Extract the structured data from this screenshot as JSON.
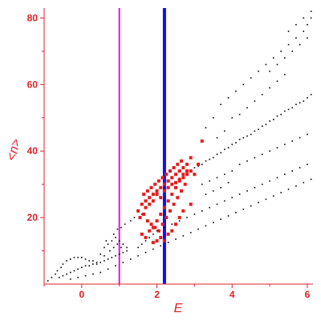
{
  "chart_data": {
    "type": "scatter",
    "xlabel": "E",
    "ylabel": "<n>",
    "xlim": [
      -1.0,
      6.15
    ],
    "ylim": [
      0,
      83
    ],
    "x_ticks": [
      "0",
      "2",
      "4",
      "6"
    ],
    "y_ticks": [
      "20",
      "40",
      "60",
      "80"
    ],
    "grid": false,
    "vertical_lines": [
      {
        "x": 1.0,
        "color": "#d21ad2"
      },
      {
        "x": 2.2,
        "color": "#0a14f0"
      }
    ],
    "series": [
      {
        "color": "#000000",
        "marker": "small-dot",
        "points": [
          [
            -0.9,
            1
          ],
          [
            -0.8,
            2
          ],
          [
            -0.7,
            3
          ],
          [
            -0.65,
            4
          ],
          [
            -0.55,
            5
          ],
          [
            -0.5,
            6
          ],
          [
            -0.4,
            7
          ],
          [
            -0.3,
            7.5
          ],
          [
            -0.2,
            8
          ],
          [
            -0.1,
            8
          ],
          [
            0,
            8
          ],
          [
            0.1,
            7.5
          ],
          [
            0.2,
            7
          ],
          [
            0.3,
            7
          ],
          [
            0.4,
            6.5
          ],
          [
            -0.6,
            2
          ],
          [
            -0.5,
            2.5
          ],
          [
            -0.4,
            3
          ],
          [
            -0.3,
            3.5
          ],
          [
            -0.2,
            4
          ],
          [
            -0.1,
            4.5
          ],
          [
            0,
            5
          ],
          [
            0.1,
            5.5
          ],
          [
            0.2,
            5.5
          ],
          [
            0.3,
            6
          ],
          [
            0.4,
            6
          ],
          [
            0.5,
            6.5
          ],
          [
            0.6,
            7
          ],
          [
            0.7,
            7.5
          ],
          [
            0.8,
            8
          ],
          [
            0.9,
            8.5
          ],
          [
            1.0,
            9
          ],
          [
            1.1,
            9.5
          ],
          [
            1.2,
            10
          ],
          [
            -0.3,
            1.5
          ],
          [
            -0.1,
            2
          ],
          [
            0.1,
            2.5
          ],
          [
            0.3,
            3
          ],
          [
            0.5,
            3.5
          ],
          [
            0.7,
            4.5
          ],
          [
            0.9,
            5.5
          ],
          [
            1.1,
            6.5
          ],
          [
            1.3,
            7.5
          ],
          [
            1.5,
            8.5
          ],
          [
            1.7,
            9.5
          ],
          [
            1.9,
            10.5
          ],
          [
            2.1,
            11.5
          ],
          [
            2.3,
            12.5
          ],
          [
            2.5,
            13.5
          ],
          [
            2.7,
            14.5
          ],
          [
            2.9,
            15.5
          ],
          [
            3.1,
            16.5
          ],
          [
            3.3,
            17.5
          ],
          [
            3.5,
            18.5
          ],
          [
            3.7,
            19.5
          ],
          [
            3.9,
            20.5
          ],
          [
            4.1,
            21.5
          ],
          [
            4.3,
            22.5
          ],
          [
            4.5,
            23.5
          ],
          [
            4.7,
            24.5
          ],
          [
            4.9,
            25.5
          ],
          [
            5.1,
            26.5
          ],
          [
            5.3,
            27.5
          ],
          [
            5.5,
            28.5
          ],
          [
            5.7,
            29.5
          ],
          [
            5.9,
            30.5
          ],
          [
            6.1,
            31.5
          ],
          [
            0.5,
            9
          ],
          [
            0.6,
            11
          ],
          [
            0.7,
            12
          ],
          [
            0.8,
            13
          ],
          [
            0.9,
            14
          ],
          [
            1.0,
            13
          ],
          [
            1.1,
            12
          ],
          [
            1.2,
            11
          ],
          [
            0.6,
            8.5
          ],
          [
            0.75,
            10
          ],
          [
            0.85,
            11
          ],
          [
            0.95,
            12
          ],
          [
            1.05,
            11
          ],
          [
            0.65,
            13
          ],
          [
            0.85,
            15
          ],
          [
            0.95,
            16.5
          ],
          [
            1.05,
            17
          ],
          [
            1.15,
            18
          ],
          [
            1.3,
            19
          ],
          [
            1.4,
            20
          ],
          [
            1.6,
            21
          ],
          [
            1.5,
            11
          ],
          [
            1.6,
            12
          ],
          [
            1.7,
            13
          ],
          [
            1.8,
            14
          ],
          [
            1.9,
            15
          ],
          [
            2.0,
            16
          ],
          [
            2.2,
            17
          ],
          [
            2.4,
            18
          ],
          [
            2.6,
            19
          ],
          [
            2.8,
            20
          ],
          [
            3.0,
            21
          ],
          [
            3.2,
            22
          ],
          [
            3.4,
            23
          ],
          [
            3.6,
            24
          ],
          [
            3.8,
            25
          ],
          [
            4.0,
            26
          ],
          [
            4.2,
            27
          ],
          [
            4.4,
            28
          ],
          [
            4.6,
            29
          ],
          [
            4.8,
            30
          ],
          [
            5.0,
            31
          ],
          [
            5.2,
            32
          ],
          [
            5.4,
            33
          ],
          [
            5.6,
            34
          ],
          [
            5.8,
            35
          ],
          [
            6.0,
            36
          ],
          [
            3.0,
            35
          ],
          [
            3.2,
            36
          ],
          [
            3.4,
            37.5
          ],
          [
            3.6,
            39
          ],
          [
            3.8,
            40.5
          ],
          [
            4.0,
            42
          ],
          [
            4.2,
            43.5
          ],
          [
            4.4,
            44.5
          ],
          [
            4.6,
            46
          ],
          [
            4.8,
            47.5
          ],
          [
            5.0,
            49
          ],
          [
            5.2,
            50.5
          ],
          [
            5.4,
            52
          ],
          [
            5.6,
            53
          ],
          [
            5.8,
            54.5
          ],
          [
            6.0,
            56
          ],
          [
            6.1,
            57
          ],
          [
            3.1,
            35.5
          ],
          [
            3.3,
            37
          ],
          [
            3.5,
            38
          ],
          [
            3.7,
            39.5
          ],
          [
            3.9,
            41
          ],
          [
            4.1,
            42.5
          ],
          [
            4.3,
            44
          ],
          [
            4.5,
            45
          ],
          [
            4.7,
            46.5
          ],
          [
            4.9,
            48
          ],
          [
            5.1,
            49.5
          ],
          [
            5.3,
            51
          ],
          [
            5.5,
            52.5
          ],
          [
            5.7,
            54
          ],
          [
            5.9,
            55
          ],
          [
            3.3,
            47
          ],
          [
            3.5,
            50
          ],
          [
            3.7,
            54
          ],
          [
            3.9,
            56
          ],
          [
            4.1,
            58
          ],
          [
            4.3,
            60
          ],
          [
            4.5,
            62
          ],
          [
            4.7,
            64
          ],
          [
            4.9,
            66
          ],
          [
            5.1,
            68
          ],
          [
            5.3,
            70
          ],
          [
            5.5,
            72
          ],
          [
            5.7,
            74
          ],
          [
            5.9,
            76
          ],
          [
            6.0,
            78
          ],
          [
            6.1,
            80
          ],
          [
            4.2,
            36
          ],
          [
            4.4,
            37
          ],
          [
            4.6,
            38
          ],
          [
            4.8,
            39
          ],
          [
            5.0,
            40
          ],
          [
            5.2,
            41
          ],
          [
            5.4,
            42
          ],
          [
            5.6,
            43
          ],
          [
            5.8,
            44
          ],
          [
            6.0,
            45
          ],
          [
            5.0,
            64
          ],
          [
            5.2,
            66
          ],
          [
            5.4,
            68
          ],
          [
            5.6,
            70
          ],
          [
            5.8,
            72
          ],
          [
            6.0,
            74
          ],
          [
            5.5,
            76
          ],
          [
            5.7,
            78
          ],
          [
            5.9,
            80
          ],
          [
            6.1,
            82
          ],
          [
            4.0,
            50
          ],
          [
            4.2,
            51
          ],
          [
            4.4,
            53
          ],
          [
            4.6,
            55
          ],
          [
            4.8,
            57
          ],
          [
            5.0,
            59
          ],
          [
            5.2,
            61
          ],
          [
            5.4,
            63
          ],
          [
            3.6,
            44
          ],
          [
            3.8,
            46
          ],
          [
            3.2,
            30
          ],
          [
            3.4,
            31
          ],
          [
            3.6,
            32
          ],
          [
            3.8,
            33
          ],
          [
            4.0,
            34
          ],
          [
            3.3,
            27
          ],
          [
            3.5,
            28
          ],
          [
            3.7,
            29
          ],
          [
            3.9,
            30.5
          ]
        ]
      },
      {
        "color": "#e41a1c",
        "marker": "large-square",
        "points": [
          [
            1.5,
            22
          ],
          [
            1.6,
            24
          ],
          [
            1.7,
            25
          ],
          [
            1.8,
            26
          ],
          [
            1.9,
            27
          ],
          [
            2.0,
            28
          ],
          [
            2.1,
            29
          ],
          [
            2.2,
            30
          ],
          [
            2.3,
            31
          ],
          [
            2.4,
            32
          ],
          [
            2.5,
            33
          ],
          [
            2.6,
            34
          ],
          [
            2.7,
            35
          ],
          [
            2.8,
            36
          ],
          [
            2.9,
            38
          ],
          [
            3.0,
            33
          ],
          [
            3.1,
            36
          ],
          [
            3.2,
            43
          ],
          [
            1.55,
            20
          ],
          [
            1.65,
            21
          ],
          [
            1.75,
            19
          ],
          [
            1.85,
            18
          ],
          [
            1.95,
            17
          ],
          [
            2.05,
            16
          ],
          [
            2.15,
            18
          ],
          [
            2.25,
            20
          ],
          [
            2.35,
            22
          ],
          [
            2.45,
            24
          ],
          [
            2.55,
            26
          ],
          [
            2.65,
            28
          ],
          [
            2.75,
            30
          ],
          [
            1.6,
            15
          ],
          [
            1.7,
            14
          ],
          [
            1.8,
            16
          ],
          [
            1.9,
            17
          ],
          [
            2.0,
            19
          ],
          [
            2.1,
            21
          ],
          [
            2.2,
            23
          ],
          [
            2.3,
            25
          ],
          [
            2.4,
            27
          ],
          [
            2.5,
            29
          ],
          [
            2.6,
            31
          ],
          [
            2.7,
            33
          ],
          [
            2.8,
            34
          ],
          [
            1.7,
            23
          ],
          [
            1.8,
            24
          ],
          [
            1.9,
            25
          ],
          [
            2.0,
            27
          ],
          [
            2.1,
            26
          ],
          [
            2.2,
            28
          ],
          [
            2.3,
            29
          ],
          [
            2.4,
            30
          ],
          [
            2.5,
            30.5
          ],
          [
            2.6,
            31.5
          ],
          [
            2.7,
            32
          ],
          [
            2.8,
            33
          ],
          [
            2.9,
            34
          ],
          [
            1.65,
            27
          ],
          [
            1.75,
            28
          ],
          [
            1.85,
            29
          ],
          [
            1.95,
            30
          ],
          [
            2.05,
            31
          ],
          [
            2.15,
            32
          ],
          [
            2.25,
            33
          ],
          [
            2.35,
            34
          ],
          [
            2.45,
            35
          ],
          [
            2.55,
            36
          ],
          [
            2.65,
            37
          ],
          [
            2.1,
            14
          ],
          [
            2.2,
            13
          ],
          [
            2.0,
            13
          ],
          [
            1.9,
            12.5
          ],
          [
            2.3,
            15
          ],
          [
            2.4,
            16
          ],
          [
            2.5,
            18
          ],
          [
            2.6,
            20
          ],
          [
            2.7,
            22
          ],
          [
            2.9,
            24
          ]
        ]
      }
    ]
  }
}
